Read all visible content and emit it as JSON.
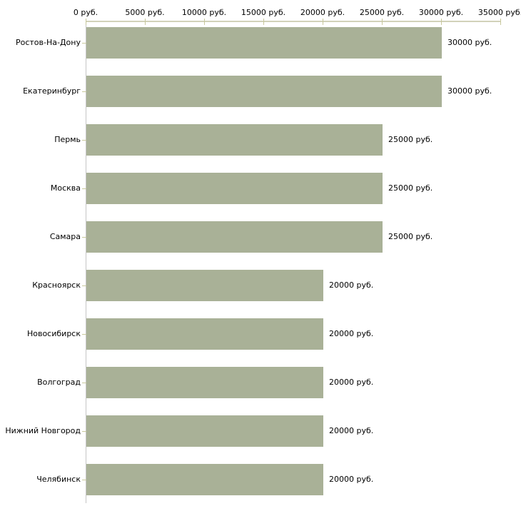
{
  "chart_data": {
    "type": "bar",
    "orientation": "horizontal",
    "categories": [
      "Ростов-На-Дону",
      "Екатеринбург",
      "Пермь",
      "Москва",
      "Самара",
      "Красноярск",
      "Новосибирск",
      "Волгоград",
      "Нижний Новгород",
      "Челябинск"
    ],
    "values": [
      30000,
      30000,
      25000,
      25000,
      25000,
      20000,
      20000,
      20000,
      20000,
      20000
    ],
    "value_labels": [
      "30000 руб.",
      "30000 руб.",
      "25000 руб.",
      "25000 руб.",
      "25000 руб.",
      "20000 руб.",
      "20000 руб.",
      "20000 руб.",
      "20000 руб.",
      "20000 руб."
    ],
    "x_tick_values": [
      0,
      5000,
      10000,
      15000,
      20000,
      25000,
      30000,
      35000
    ],
    "x_tick_labels": [
      "0 руб.",
      "5000 руб.",
      "10000 руб.",
      "15000 руб.",
      "20000 руб.",
      "25000 руб.",
      "30000 руб.",
      "35000 руб."
    ],
    "xlim": [
      0,
      35000
    ],
    "unit": "руб.",
    "title": "",
    "xlabel": "",
    "ylabel": "",
    "grid": false,
    "legend": "none",
    "axis_position": "top",
    "colors": {
      "bar": "#a9b197",
      "x_axis_line": "#d2d2ba",
      "tick_mark": "#c8c89c",
      "y_axis_line": "#c6c6c6",
      "text": "#000000",
      "background": "#ffffff"
    }
  }
}
